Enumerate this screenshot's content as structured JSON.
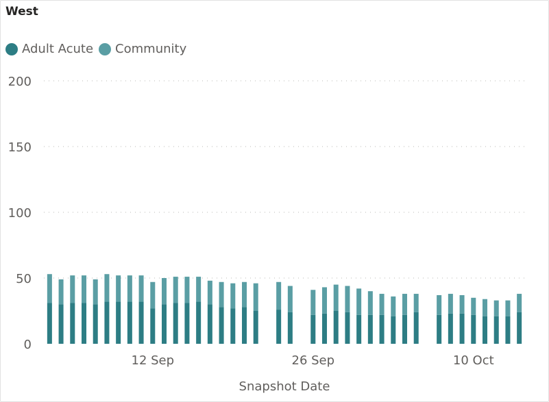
{
  "chart_data": {
    "type": "bar",
    "stacked": true,
    "title": "West",
    "xlabel": "Snapshot Date",
    "ylabel": "",
    "ylim": [
      0,
      200
    ],
    "y_ticks": [
      "0",
      "50",
      "100",
      "150",
      "200"
    ],
    "x_ticks": [
      {
        "label": "12 Sep",
        "date": "2021-09-12"
      },
      {
        "label": "26 Sep",
        "date": "2021-09-26"
      },
      {
        "label": "10 Oct",
        "date": "2021-10-10"
      }
    ],
    "grid": true,
    "legend": "top-left",
    "x": [
      "2021-09-03",
      "2021-09-04",
      "2021-09-05",
      "2021-09-06",
      "2021-09-07",
      "2021-09-08",
      "2021-09-09",
      "2021-09-10",
      "2021-09-11",
      "2021-09-12",
      "2021-09-13",
      "2021-09-14",
      "2021-09-15",
      "2021-09-16",
      "2021-09-17",
      "2021-09-18",
      "2021-09-19",
      "2021-09-20",
      "2021-09-21",
      "2021-09-22",
      "2021-09-23",
      "2021-09-24",
      "2021-09-25",
      "2021-09-26",
      "2021-09-27",
      "2021-09-28",
      "2021-09-29",
      "2021-09-30",
      "2021-10-01",
      "2021-10-02",
      "2021-10-03",
      "2021-10-04",
      "2021-10-05",
      "2021-10-06",
      "2021-10-07",
      "2021-10-08",
      "2021-10-09",
      "2021-10-10",
      "2021-10-11",
      "2021-10-12",
      "2021-10-13",
      "2021-10-14"
    ],
    "series": [
      {
        "name": "Adult Acute",
        "color": "#2d7d84",
        "values": [
          31,
          30,
          31,
          31,
          30,
          32,
          32,
          32,
          32,
          27,
          30,
          31,
          31,
          32,
          30,
          28,
          27,
          28,
          25,
          null,
          26,
          24,
          null,
          22,
          23,
          25,
          24,
          22,
          22,
          22,
          21,
          22,
          24,
          null,
          22,
          23,
          23,
          22,
          21,
          21,
          21,
          24
        ]
      },
      {
        "name": "Community",
        "color": "#5a9ea4",
        "values": [
          22,
          19,
          21,
          21,
          19,
          21,
          20,
          20,
          20,
          20,
          20,
          20,
          20,
          19,
          18,
          19,
          19,
          19,
          21,
          null,
          21,
          20,
          null,
          19,
          20,
          20,
          20,
          20,
          18,
          16,
          15,
          16,
          14,
          null,
          15,
          15,
          14,
          13,
          13,
          12,
          12,
          14
        ]
      }
    ]
  },
  "legend": {
    "items": [
      {
        "label": "Adult Acute",
        "color": "#2d7d84"
      },
      {
        "label": "Community",
        "color": "#5a9ea4"
      }
    ]
  }
}
